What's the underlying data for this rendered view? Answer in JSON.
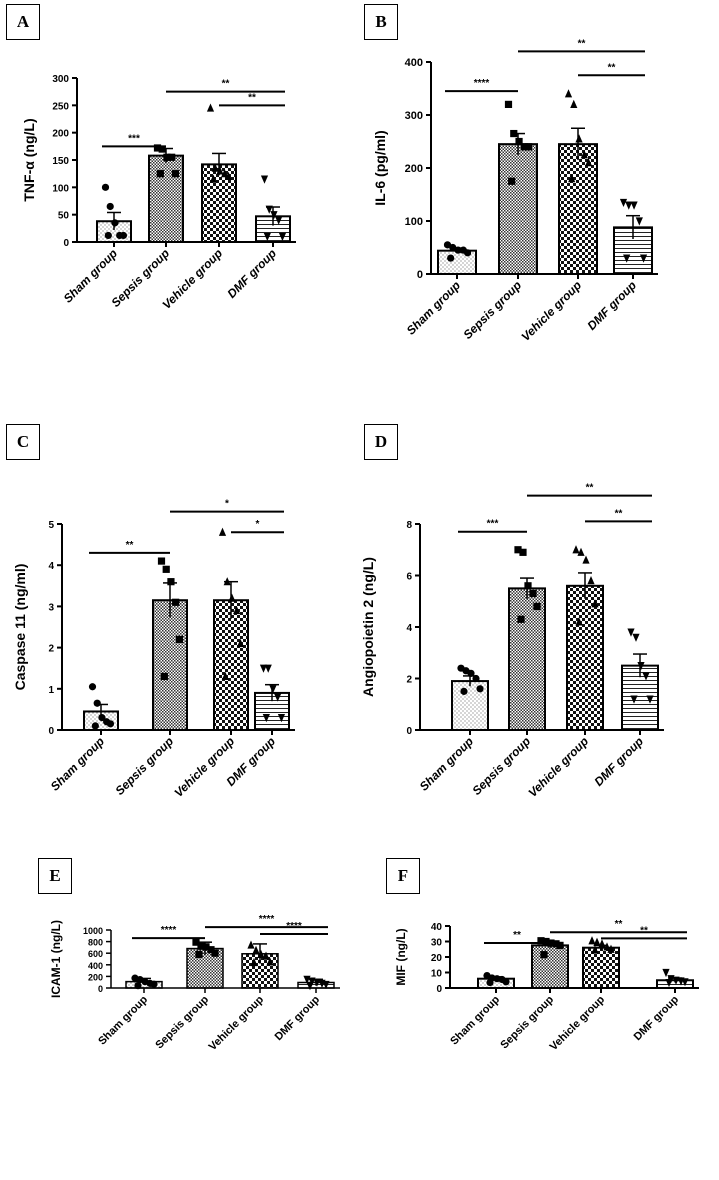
{
  "chart_data": [
    {
      "panel": "A",
      "type": "bar",
      "ylabel": "TNF-α (ng/L)",
      "ylim": [
        0,
        300
      ],
      "yticks": [
        0,
        50,
        100,
        150,
        200,
        250,
        300
      ],
      "label_style": "bold-italic",
      "categories": [
        "Sham group",
        "Sepsis group",
        "Vehicle group",
        "DMF group"
      ],
      "values": [
        38,
        158,
        142,
        47
      ],
      "errors": [
        16,
        13,
        20,
        17
      ],
      "points": [
        [
          100,
          65,
          35,
          12,
          12,
          12
        ],
        [
          172,
          170,
          155,
          155,
          125,
          125
        ],
        [
          245,
          135,
          130,
          125,
          120,
          115
        ],
        [
          115,
          60,
          50,
          40,
          10,
          10
        ]
      ],
      "significance": [
        {
          "from": 0,
          "to": 1,
          "label": "***",
          "y": 175
        },
        {
          "from": 1,
          "to": 3,
          "label": "**",
          "y": 275
        },
        {
          "from": 2,
          "to": 3,
          "label": "**",
          "y": 250
        }
      ]
    },
    {
      "panel": "B",
      "type": "bar",
      "ylabel": "IL-6 (pg/ml)",
      "ylim": [
        0,
        400
      ],
      "yticks": [
        0,
        100,
        200,
        300,
        400
      ],
      "label_style": "bold-italic",
      "categories": [
        "Sham group",
        "Sepsis group",
        "Vehicle group",
        "DMF group"
      ],
      "values": [
        44,
        245,
        245,
        88
      ],
      "errors": [
        5,
        20,
        30,
        22
      ],
      "points": [
        [
          55,
          50,
          45,
          45,
          40,
          30
        ],
        [
          320,
          265,
          250,
          240,
          240,
          175
        ],
        [
          340,
          320,
          255,
          225,
          210,
          180
        ],
        [
          135,
          130,
          130,
          100,
          30,
          30
        ]
      ],
      "significance": [
        {
          "from": 0,
          "to": 1,
          "label": "****",
          "y": 345
        },
        {
          "from": 1,
          "to": 3,
          "label": "**",
          "y": 420
        },
        {
          "from": 2,
          "to": 3,
          "label": "**",
          "y": 375
        }
      ]
    },
    {
      "panel": "C",
      "type": "bar",
      "ylabel": "Caspase 11 (ng/ml)",
      "ylim": [
        0,
        5
      ],
      "yticks": [
        0,
        1,
        2,
        3,
        4,
        5
      ],
      "label_style": "bold-italic",
      "categories": [
        "Sham group",
        "Sepsis group",
        "Vehicle group",
        "DMF group"
      ],
      "values": [
        0.45,
        3.15,
        3.15,
        0.9
      ],
      "errors": [
        0.17,
        0.42,
        0.45,
        0.2
      ],
      "points": [
        [
          1.05,
          0.65,
          0.3,
          0.2,
          0.15,
          0.1
        ],
        [
          4.1,
          3.9,
          3.6,
          3.1,
          2.2,
          1.3
        ],
        [
          4.8,
          3.6,
          3.2,
          2.9,
          2.1,
          1.3
        ],
        [
          1.5,
          1.5,
          1.0,
          0.8,
          0.3,
          0.3
        ]
      ],
      "significance": [
        {
          "from": 0,
          "to": 1,
          "label": "**",
          "y": 4.3
        },
        {
          "from": 1,
          "to": 3,
          "label": "*",
          "y": 5.3
        },
        {
          "from": 2,
          "to": 3,
          "label": "*",
          "y": 4.8
        }
      ]
    },
    {
      "panel": "D",
      "type": "bar",
      "ylabel": "Angiopoietin 2 (ng/L)",
      "ylim": [
        0,
        8
      ],
      "yticks": [
        0,
        2,
        4,
        6,
        8
      ],
      "label_style": "bold-italic",
      "categories": [
        "Sham group",
        "Sepsis group",
        "Vehicle group",
        "DMF group"
      ],
      "values": [
        1.9,
        5.5,
        5.6,
        2.5
      ],
      "errors": [
        0.2,
        0.4,
        0.5,
        0.45
      ],
      "points": [
        [
          2.4,
          2.3,
          2.2,
          2.0,
          1.6,
          1.5
        ],
        [
          7.0,
          6.9,
          5.6,
          5.3,
          4.8,
          4.3
        ],
        [
          7.0,
          6.9,
          6.6,
          5.8,
          4.9,
          4.2
        ],
        [
          3.8,
          3.6,
          2.5,
          2.1,
          1.2,
          1.2
        ]
      ],
      "significance": [
        {
          "from": 0,
          "to": 1,
          "label": "***",
          "y": 7.7
        },
        {
          "from": 1,
          "to": 3,
          "label": "**",
          "y": 9.1
        },
        {
          "from": 2,
          "to": 3,
          "label": "**",
          "y": 8.1
        }
      ]
    },
    {
      "panel": "E",
      "type": "bar",
      "ylabel": "ICAM-1 (ng/L)",
      "ylim": [
        0,
        1000
      ],
      "yticks": [
        0,
        200,
        400,
        600,
        800,
        1000
      ],
      "label_style": "normal",
      "categories": [
        "Sham group",
        "Sepsis group",
        "Vehicle group",
        "DMF group"
      ],
      "values": [
        110,
        680,
        590,
        95
      ],
      "errors": [
        55,
        110,
        170,
        55
      ],
      "points": [
        [
          170,
          145,
          110,
          80,
          65,
          40
        ],
        [
          790,
          720,
          710,
          660,
          600,
          580
        ],
        [
          740,
          650,
          580,
          550,
          450,
          440
        ],
        [
          150,
          120,
          100,
          80,
          60,
          40
        ]
      ],
      "significance": [
        {
          "from": 0,
          "to": 1,
          "label": "****",
          "y": 860
        },
        {
          "from": 1,
          "to": 3,
          "label": "****",
          "y": 1050
        },
        {
          "from": 2,
          "to": 3,
          "label": "****",
          "y": 930
        }
      ]
    },
    {
      "panel": "F",
      "type": "bar",
      "ylabel": "MIF (ng/L)",
      "ylim": [
        0,
        40
      ],
      "yticks": [
        0,
        10,
        20,
        30,
        40
      ],
      "label_style": "normal",
      "categories": [
        "Sham group",
        "Sepsis group",
        "Vehicle group",
        "DMF group"
      ],
      "values": [
        6,
        27.5,
        26,
        5
      ],
      "errors": [
        1.2,
        1.5,
        1.5,
        1.4
      ],
      "points": [
        [
          8.0,
          6.5,
          6.0,
          5.5,
          4.0,
          3.5
        ],
        [
          30.5,
          30.0,
          29.0,
          28.5,
          27.5,
          21.5
        ],
        [
          30.5,
          29.5,
          28.5,
          26.5,
          25.0,
          24.5
        ],
        [
          10.0,
          6.0,
          5.0,
          4.5,
          4.0,
          3.5
        ]
      ],
      "significance": [
        {
          "from": 0,
          "to": 1,
          "label": "**",
          "y": 29
        },
        {
          "from": 1,
          "to": 3,
          "label": "**",
          "y": 36
        },
        {
          "from": 2,
          "to": 3,
          "label": "**",
          "y": 32
        }
      ]
    }
  ]
}
